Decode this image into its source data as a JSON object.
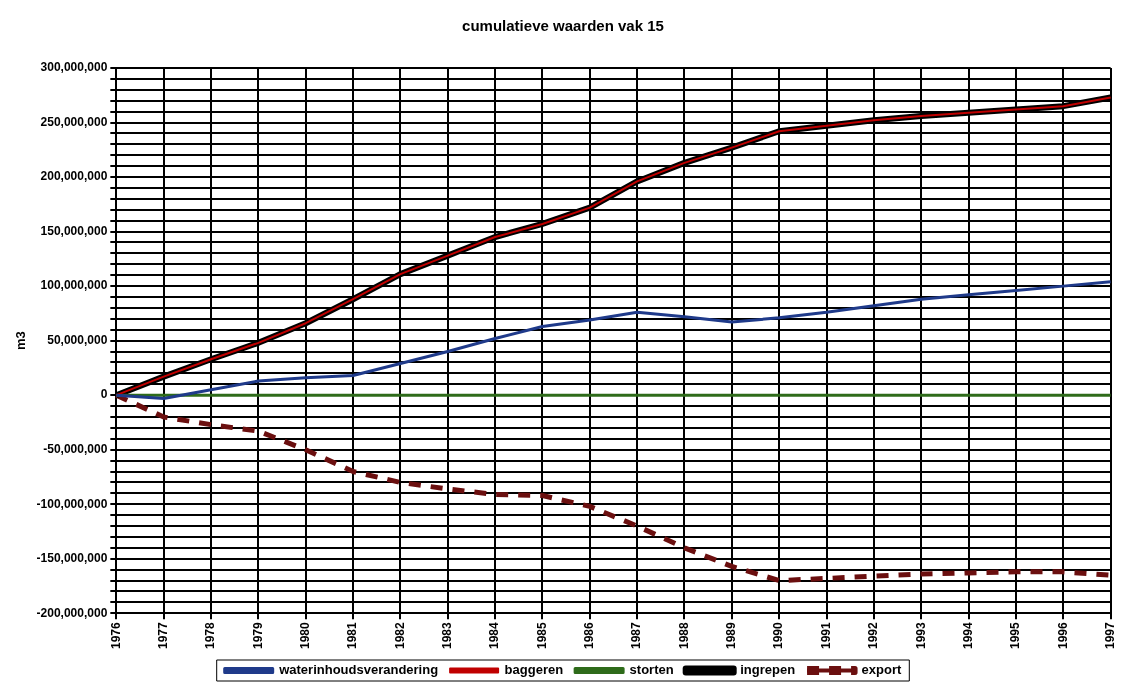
{
  "chart_data": {
    "type": "line",
    "title": "cumulatieve waarden vak 15",
    "ylabel": "m3",
    "categories": [
      "1976",
      "1977",
      "1978",
      "1979",
      "1980",
      "1981",
      "1982",
      "1983",
      "1984",
      "1985",
      "1986",
      "1987",
      "1988",
      "1989",
      "1990",
      "1991",
      "1992",
      "1993",
      "1994",
      "1995",
      "1996",
      "1997"
    ],
    "series": [
      {
        "name": "waterinhoudsverandering",
        "color": "#1f3a8a",
        "values": [
          0,
          -3000000,
          5000000,
          13000000,
          16000000,
          18000000,
          29000000,
          40000000,
          52000000,
          63000000,
          69000000,
          76000000,
          72000000,
          67000000,
          71000000,
          76000000,
          82000000,
          88000000,
          92000000,
          96000000,
          100000000,
          104000000
        ]
      },
      {
        "name": "baggeren",
        "color": "#c00000",
        "values": [
          0,
          17000000,
          33000000,
          48000000,
          66000000,
          88000000,
          111000000,
          128000000,
          145000000,
          157000000,
          172000000,
          196000000,
          213000000,
          227000000,
          242000000,
          247000000,
          252000000,
          256000000,
          259000000,
          262000000,
          265000000,
          273000000
        ]
      },
      {
        "name": "storten",
        "color": "#2e6b1a",
        "values": [
          0,
          0,
          0,
          0,
          0,
          0,
          0,
          0,
          0,
          0,
          0,
          0,
          0,
          0,
          0,
          0,
          0,
          0,
          0,
          0,
          0,
          0
        ]
      },
      {
        "name": "ingrepen",
        "color": "#000000",
        "values": [
          0,
          17000000,
          33000000,
          48000000,
          66000000,
          88000000,
          111000000,
          128000000,
          145000000,
          157000000,
          172000000,
          196000000,
          213000000,
          227000000,
          242000000,
          247000000,
          252000000,
          256000000,
          259000000,
          262000000,
          265000000,
          273000000
        ]
      },
      {
        "name": "export",
        "color": "#6b0f0f",
        "line_style": "dashed",
        "values": [
          0,
          -20000000,
          -27000000,
          -33000000,
          -50000000,
          -70000000,
          -80000000,
          -86000000,
          -91000000,
          -92000000,
          -102000000,
          -120000000,
          -140000000,
          -157000000,
          -170000000,
          -168000000,
          -166000000,
          -164000000,
          -163000000,
          -162000000,
          -162000000,
          -165000000
        ]
      }
    ],
    "ylim": [
      -200000000,
      300000000
    ],
    "yticks": [
      {
        "value": -200000000,
        "label": "-200,000,000"
      },
      {
        "value": -190000000,
        "label": null
      },
      {
        "value": -180000000,
        "label": null
      },
      {
        "value": -170000000,
        "label": null
      },
      {
        "value": -160000000,
        "label": null
      },
      {
        "value": -150000000,
        "label": "-150,000,000"
      },
      {
        "value": -140000000,
        "label": null
      },
      {
        "value": -130000000,
        "label": null
      },
      {
        "value": -120000000,
        "label": null
      },
      {
        "value": -110000000,
        "label": null
      },
      {
        "value": -100000000,
        "label": "-100,000,000"
      },
      {
        "value": -90000000,
        "label": null
      },
      {
        "value": -80000000,
        "label": null
      },
      {
        "value": -70000000,
        "label": null
      },
      {
        "value": -60000000,
        "label": null
      },
      {
        "value": -50000000,
        "label": "-50,000,000"
      },
      {
        "value": -40000000,
        "label": null
      },
      {
        "value": -30000000,
        "label": null
      },
      {
        "value": -20000000,
        "label": null
      },
      {
        "value": -10000000,
        "label": null
      },
      0,
      {
        "value": 10000000,
        "label": null
      },
      {
        "value": 20000000,
        "label": null
      },
      {
        "value": 30000000,
        "label": null
      },
      {
        "value": 40000000,
        "label": null
      },
      {
        "value": 50000000,
        "label": "50,000,000"
      },
      {
        "value": 60000000,
        "label": null
      },
      {
        "value": 70000000,
        "label": null
      },
      {
        "value": 80000000,
        "label": null
      },
      {
        "value": 90000000,
        "label": null
      },
      {
        "value": 100000000,
        "label": "100,000,000"
      },
      {
        "value": 110000000,
        "label": null
      },
      {
        "value": 120000000,
        "label": null
      },
      {
        "value": 130000000,
        "label": null
      },
      {
        "value": 140000000,
        "label": null
      },
      {
        "value": 150000000,
        "label": "150,000,000"
      },
      {
        "value": 160000000,
        "label": null
      },
      {
        "value": 170000000,
        "label": null
      },
      {
        "value": 180000000,
        "label": null
      },
      {
        "value": 190000000,
        "label": null
      },
      {
        "value": 200000000,
        "label": "200,000,000"
      },
      {
        "value": 210000000,
        "label": null
      },
      {
        "value": 220000000,
        "label": null
      },
      {
        "value": 230000000,
        "label": null
      },
      {
        "value": 240000000,
        "label": null
      },
      {
        "value": 250000000,
        "label": "250,000,000"
      },
      {
        "value": 260000000,
        "label": null
      },
      {
        "value": 270000000,
        "label": null
      },
      {
        "value": 280000000,
        "label": null
      },
      {
        "value": 290000000,
        "label": null
      },
      {
        "value": 300000000,
        "label": "300,000,000"
      }
    ],
    "grid": true,
    "legend": "bottom",
    "marker": "none"
  }
}
